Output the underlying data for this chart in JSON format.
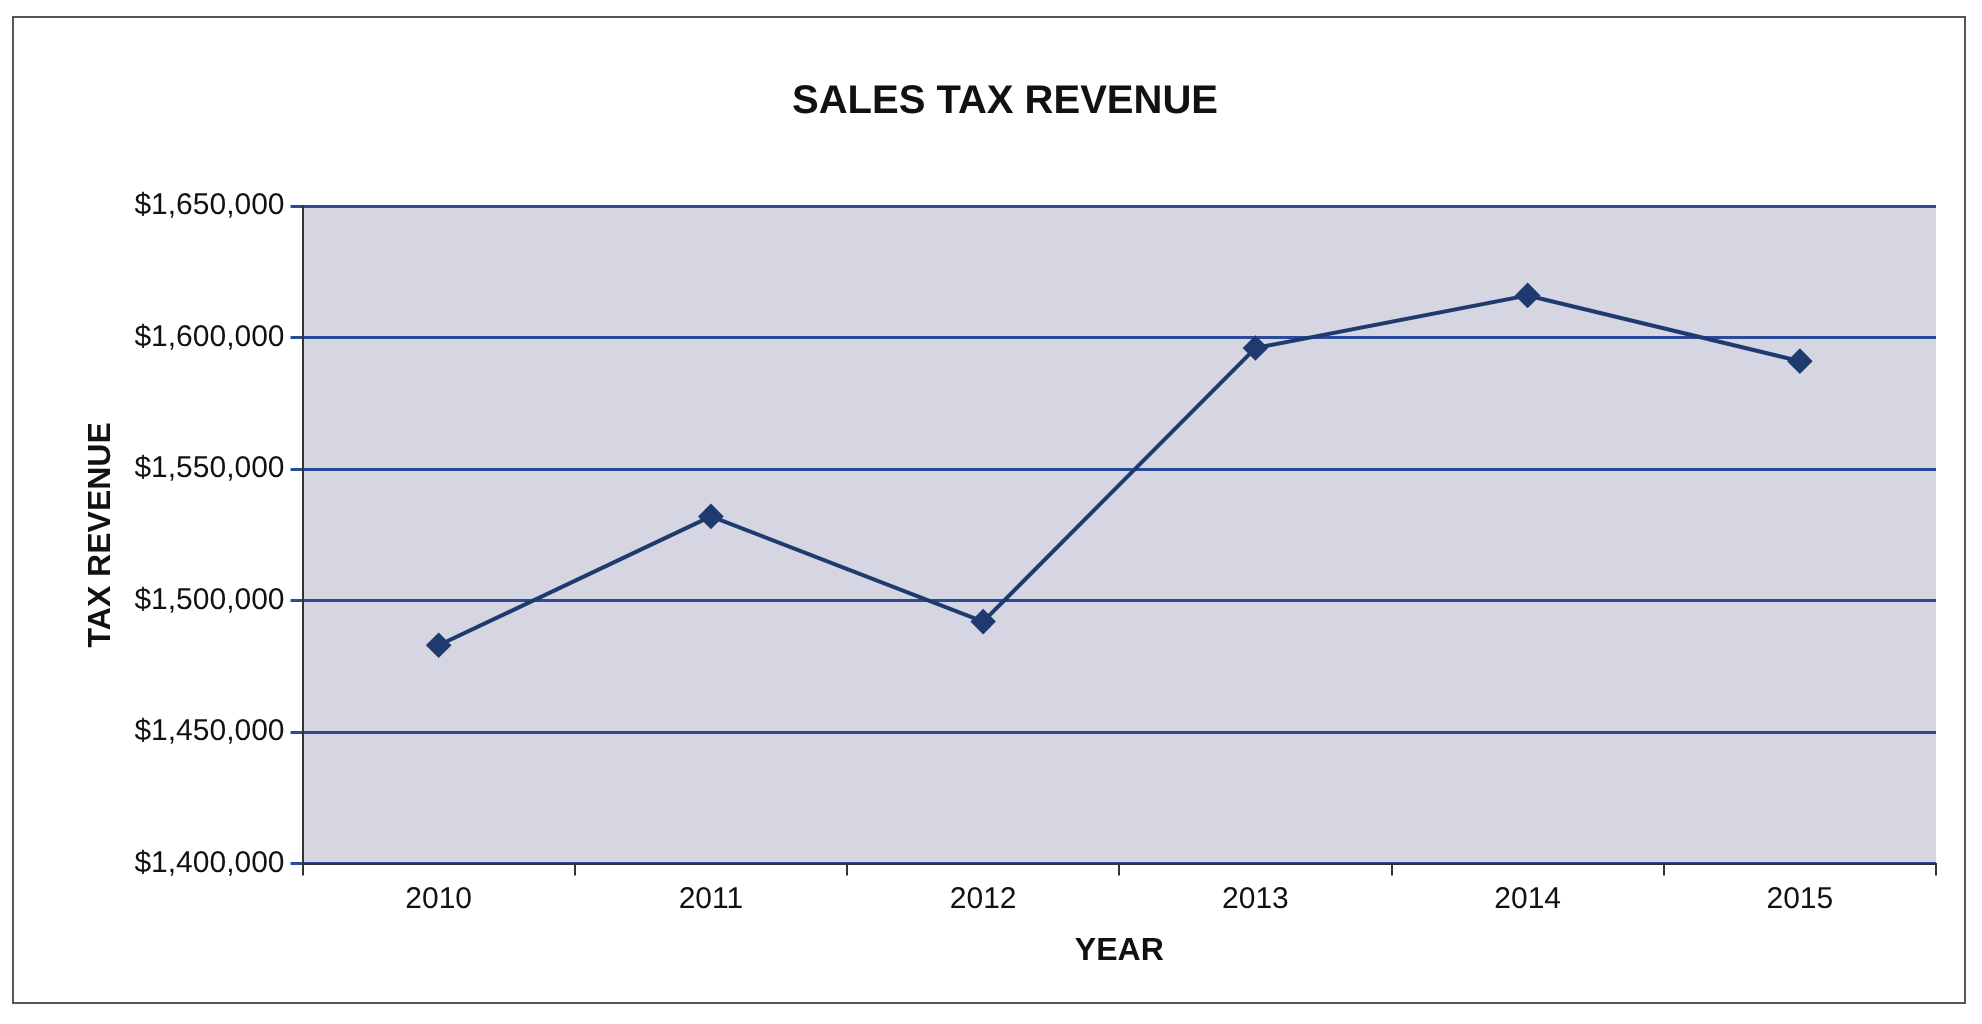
{
  "chart_data": {
    "type": "line",
    "title": "SALES TAX REVENUE",
    "xlabel": "YEAR",
    "ylabel": "TAX REVENUE",
    "categories": [
      "2010",
      "2011",
      "2012",
      "2013",
      "2014",
      "2015"
    ],
    "series": [
      {
        "color": "#1f3a6e",
        "values": [
          1483000,
          1532000,
          1492000,
          1596000,
          1616000,
          1591000
        ]
      }
    ],
    "ylim": [
      1400000,
      1650000
    ],
    "yticks": [
      {
        "value": 1400000,
        "label": "$1,400,000"
      },
      {
        "value": 1450000,
        "label": "$1,450,000"
      },
      {
        "value": 1500000,
        "label": "$1,500,000"
      },
      {
        "value": 1550000,
        "label": "$1,550,000"
      },
      {
        "value": 1600000,
        "label": "$1,600,000"
      },
      {
        "value": 1650000,
        "label": "$1,650,000"
      }
    ],
    "grid": "y",
    "legend": false,
    "marker": "diamond",
    "line_style": "solid"
  }
}
